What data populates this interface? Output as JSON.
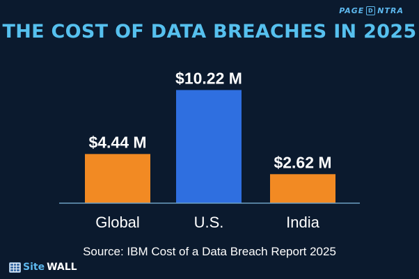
{
  "brand": {
    "top_left_text": "PAGE",
    "top_mark": "D",
    "top_right_text": "NTRA"
  },
  "watermark": {
    "site": "Site",
    "wall": "WALL"
  },
  "chart_data": {
    "type": "bar",
    "title": "THE COST OF DATA BREACHES IN 2025",
    "categories": [
      "Global",
      "U.S.",
      "India"
    ],
    "values": [
      4.44,
      10.22,
      2.62
    ],
    "value_labels": [
      "$4.44 M",
      "$10.22 M",
      "$2.62 M"
    ],
    "bar_colors": [
      "#f28a23",
      "#2f6fe0",
      "#f28a23"
    ],
    "ylim": [
      0,
      11
    ],
    "grid": false,
    "legend": "none",
    "xlabel": "",
    "ylabel": "",
    "source": "Source: IBM Cost of a Data Breach Report 2025"
  },
  "colors": {
    "background": "#0b1a2e",
    "title": "#56c0ee",
    "axis": "#6d9fc4",
    "text": "#ffffff"
  }
}
